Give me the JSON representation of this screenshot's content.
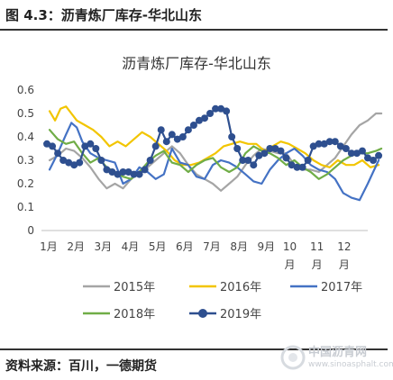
{
  "figure": {
    "caption": "图 4.3：沥青炼厂库存-华北山东",
    "source": "资料来源：百川，一德期货"
  },
  "watermark": {
    "name": "中国沥青网",
    "url": "www.sinoasphalt.com"
  },
  "chart_data": {
    "type": "line",
    "title": "沥青炼厂库存-华北山东",
    "xlabel": "",
    "ylabel": "",
    "ylim": [
      0,
      0.6
    ],
    "yticks": [
      "0",
      "0.1",
      "0.2",
      "0.3",
      "0.4",
      "0.5",
      "0.6"
    ],
    "xlim": [
      0,
      12
    ],
    "xticks": [
      "1月",
      "2月",
      "3月",
      "4月",
      "5月",
      "6月",
      "7月",
      "8月",
      "9月",
      "10月",
      "11月",
      "12月"
    ],
    "grid": false,
    "legend_position": "bottom",
    "series": [
      {
        "name": "2015年",
        "color": "#a5a5a5",
        "marker": false,
        "x": [
          0.3,
          0.6,
          0.9,
          1.2,
          1.5,
          1.8,
          2.1,
          2.4,
          2.7,
          3.0,
          3.3,
          3.6,
          3.9,
          4.2,
          4.5,
          4.8,
          5.1,
          5.4,
          5.7,
          6.0,
          6.3,
          6.6,
          6.9,
          7.2,
          7.5,
          7.8,
          8.1,
          8.4,
          8.7,
          9.0,
          9.3,
          9.6,
          9.9,
          10.2,
          10.5,
          10.8,
          11.1,
          11.4,
          11.7,
          12.0,
          12.3,
          12.5
        ],
        "values": [
          0.3,
          0.32,
          0.35,
          0.34,
          0.31,
          0.27,
          0.22,
          0.18,
          0.2,
          0.18,
          0.22,
          0.25,
          0.27,
          0.3,
          0.33,
          0.36,
          0.33,
          0.28,
          0.24,
          0.22,
          0.2,
          0.17,
          0.2,
          0.23,
          0.28,
          0.32,
          0.35,
          0.34,
          0.33,
          0.33,
          0.28,
          0.26,
          0.26,
          0.25,
          0.28,
          0.31,
          0.36,
          0.41,
          0.45,
          0.47,
          0.5,
          0.5
        ]
      },
      {
        "name": "2016年",
        "color": "#f2c500",
        "marker": false,
        "x": [
          0.3,
          0.5,
          0.7,
          0.9,
          1.1,
          1.3,
          1.6,
          1.9,
          2.2,
          2.5,
          2.8,
          3.1,
          3.4,
          3.7,
          4.0,
          4.3,
          4.6,
          4.9,
          5.2,
          5.5,
          5.8,
          6.1,
          6.4,
          6.7,
          7.0,
          7.3,
          7.6,
          7.9,
          8.2,
          8.5,
          8.8,
          9.1,
          9.4,
          9.7,
          10.0,
          10.3,
          10.6,
          10.9,
          11.2,
          11.5,
          11.8,
          12.1,
          12.4
        ],
        "values": [
          0.51,
          0.47,
          0.52,
          0.53,
          0.5,
          0.47,
          0.45,
          0.43,
          0.4,
          0.36,
          0.38,
          0.36,
          0.39,
          0.42,
          0.4,
          0.37,
          0.34,
          0.3,
          0.28,
          0.28,
          0.29,
          0.31,
          0.33,
          0.36,
          0.37,
          0.38,
          0.37,
          0.37,
          0.34,
          0.36,
          0.38,
          0.37,
          0.35,
          0.33,
          0.3,
          0.28,
          0.27,
          0.3,
          0.28,
          0.28,
          0.3,
          0.27,
          0.28
        ]
      },
      {
        "name": "2017年",
        "color": "#4472c4",
        "marker": false,
        "x": [
          0.3,
          0.6,
          0.9,
          1.1,
          1.3,
          1.5,
          1.8,
          2.1,
          2.4,
          2.7,
          3.0,
          3.3,
          3.6,
          3.9,
          4.2,
          4.5,
          4.8,
          5.1,
          5.4,
          5.7,
          6.0,
          6.3,
          6.6,
          6.9,
          7.2,
          7.5,
          7.8,
          8.1,
          8.4,
          8.7,
          9.0,
          9.3,
          9.6,
          9.9,
          10.2,
          10.5,
          10.8,
          11.1,
          11.4,
          11.7,
          12.0,
          12.2,
          12.4
        ],
        "values": [
          0.26,
          0.33,
          0.41,
          0.46,
          0.44,
          0.38,
          0.33,
          0.31,
          0.3,
          0.29,
          0.2,
          0.22,
          0.27,
          0.25,
          0.22,
          0.24,
          0.35,
          0.29,
          0.28,
          0.23,
          0.22,
          0.28,
          0.3,
          0.29,
          0.27,
          0.24,
          0.21,
          0.2,
          0.26,
          0.3,
          0.33,
          0.35,
          0.32,
          0.28,
          0.26,
          0.25,
          0.22,
          0.16,
          0.14,
          0.13,
          0.2,
          0.25,
          0.3
        ]
      },
      {
        "name": "2018年",
        "color": "#70ad47",
        "marker": false,
        "x": [
          0.3,
          0.6,
          0.9,
          1.2,
          1.5,
          1.8,
          2.1,
          2.4,
          2.7,
          3.0,
          3.3,
          3.6,
          3.9,
          4.2,
          4.5,
          4.8,
          5.1,
          5.4,
          5.7,
          6.0,
          6.3,
          6.6,
          6.9,
          7.2,
          7.5,
          7.8,
          8.1,
          8.4,
          8.7,
          9.0,
          9.3,
          9.6,
          9.9,
          10.2,
          10.5,
          10.8,
          11.1,
          11.4,
          11.7,
          12.0,
          12.3,
          12.5
        ],
        "values": [
          0.43,
          0.39,
          0.37,
          0.38,
          0.33,
          0.29,
          0.31,
          0.27,
          0.25,
          0.23,
          0.22,
          0.25,
          0.29,
          0.32,
          0.34,
          0.29,
          0.28,
          0.25,
          0.28,
          0.3,
          0.31,
          0.27,
          0.25,
          0.27,
          0.33,
          0.36,
          0.34,
          0.33,
          0.31,
          0.28,
          0.3,
          0.27,
          0.25,
          0.22,
          0.24,
          0.27,
          0.3,
          0.32,
          0.33,
          0.33,
          0.34,
          0.35
        ]
      },
      {
        "name": "2019年",
        "color": "#2e4f8f",
        "marker": true,
        "x": [
          0.2,
          0.4,
          0.6,
          0.8,
          1.0,
          1.2,
          1.4,
          1.6,
          1.8,
          2.0,
          2.2,
          2.4,
          2.6,
          2.8,
          3.0,
          3.2,
          3.4,
          3.6,
          3.8,
          4.0,
          4.2,
          4.4,
          4.6,
          4.8,
          5.0,
          5.2,
          5.4,
          5.6,
          5.8,
          6.0,
          6.2,
          6.4,
          6.6,
          6.8,
          7.0,
          7.2,
          7.4,
          7.6,
          7.8,
          8.0,
          8.2,
          8.4,
          8.6,
          8.8,
          9.0,
          9.2,
          9.4,
          9.6,
          9.8,
          10.0,
          10.2,
          10.4,
          10.6,
          10.8,
          11.0,
          11.2,
          11.4,
          11.6,
          11.8,
          12.0,
          12.2,
          12.4
        ],
        "values": [
          0.37,
          0.36,
          0.33,
          0.3,
          0.29,
          0.28,
          0.29,
          0.36,
          0.37,
          0.35,
          0.3,
          0.26,
          0.25,
          0.24,
          0.25,
          0.25,
          0.24,
          0.24,
          0.26,
          0.3,
          0.36,
          0.43,
          0.38,
          0.41,
          0.39,
          0.4,
          0.43,
          0.45,
          0.47,
          0.48,
          0.5,
          0.52,
          0.52,
          0.51,
          0.4,
          0.35,
          0.3,
          0.3,
          0.28,
          0.32,
          0.33,
          0.35,
          0.35,
          0.34,
          0.31,
          0.28,
          0.27,
          0.27,
          0.3,
          0.36,
          0.37,
          0.37,
          0.38,
          0.38,
          0.36,
          0.35,
          0.33,
          0.33,
          0.34,
          0.31,
          0.3,
          0.32
        ]
      }
    ]
  }
}
